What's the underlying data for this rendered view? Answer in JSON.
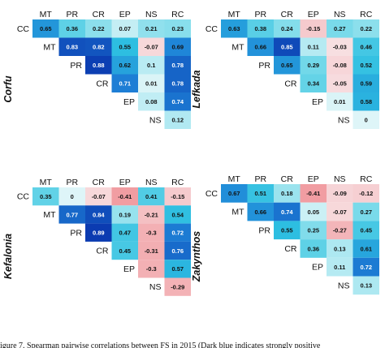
{
  "caption": "igure 7. Spearman pairwise correlations between FS in 2015 (Dark blue indicates strongly positive",
  "chart_data": [
    {
      "type": "heatmap",
      "title": "Corfu",
      "rows": [
        "CC",
        "MT",
        "PR",
        "CR",
        "EP",
        "NS"
      ],
      "columns": [
        "MT",
        "PR",
        "CR",
        "EP",
        "NS",
        "RC"
      ],
      "cells": [
        [
          0.65,
          0.36,
          0.22,
          0.07,
          0.21,
          0.23
        ],
        [
          null,
          0.83,
          0.82,
          0.55,
          -0.07,
          0.69
        ],
        [
          null,
          null,
          0.88,
          0.62,
          0.1,
          0.78
        ],
        [
          null,
          null,
          null,
          0.71,
          0.01,
          0.78
        ],
        [
          null,
          null,
          null,
          null,
          0.08,
          0.74
        ],
        [
          null,
          null,
          null,
          null,
          null,
          0.12
        ]
      ]
    },
    {
      "type": "heatmap",
      "title": "Lefkada",
      "rows": [
        "CC",
        "MT",
        "PR",
        "CR",
        "EP",
        "NS"
      ],
      "columns": [
        "MT",
        "PR",
        "CR",
        "EP",
        "NS",
        "RC"
      ],
      "cells": [
        [
          0.63,
          0.38,
          0.24,
          -0.15,
          0.27,
          0.22
        ],
        [
          null,
          0.66,
          0.85,
          0.11,
          -0.03,
          0.46
        ],
        [
          null,
          null,
          0.65,
          0.29,
          -0.08,
          0.52
        ],
        [
          null,
          null,
          null,
          0.34,
          -0.05,
          0.59
        ],
        [
          null,
          null,
          null,
          null,
          0.01,
          0.58
        ],
        [
          null,
          null,
          null,
          null,
          null,
          0
        ]
      ]
    },
    {
      "type": "heatmap",
      "title": "Kefalonia",
      "rows": [
        "CC",
        "MT",
        "PR",
        "CR",
        "EP",
        "NS"
      ],
      "columns": [
        "MT",
        "PR",
        "CR",
        "EP",
        "NS",
        "RC"
      ],
      "cells": [
        [
          0.35,
          0,
          -0.07,
          -0.41,
          0.41,
          -0.15
        ],
        [
          null,
          0.77,
          0.84,
          0.19,
          -0.21,
          0.54
        ],
        [
          null,
          null,
          0.89,
          0.47,
          -0.3,
          0.72
        ],
        [
          null,
          null,
          null,
          0.45,
          -0.31,
          0.76
        ],
        [
          null,
          null,
          null,
          null,
          -0.3,
          0.57
        ],
        [
          null,
          null,
          null,
          null,
          null,
          -0.29
        ]
      ]
    },
    {
      "type": "heatmap",
      "title": "Zakynthos",
      "rows": [
        "CC",
        "MT",
        "PR",
        "CR",
        "EP",
        "NS"
      ],
      "columns": [
        "MT",
        "PR",
        "CR",
        "EP",
        "NS",
        "RC"
      ],
      "cells": [
        [
          0.67,
          0.51,
          0.18,
          -0.41,
          -0.09,
          -0.12
        ],
        [
          null,
          0.66,
          0.74,
          0.05,
          -0.07,
          0.27
        ],
        [
          null,
          null,
          0.55,
          0.25,
          -0.27,
          0.45
        ],
        [
          null,
          null,
          null,
          0.36,
          0.13,
          0.61
        ],
        [
          null,
          null,
          null,
          null,
          0.11,
          0.72
        ],
        [
          null,
          null,
          null,
          null,
          null,
          0.13
        ]
      ]
    }
  ]
}
